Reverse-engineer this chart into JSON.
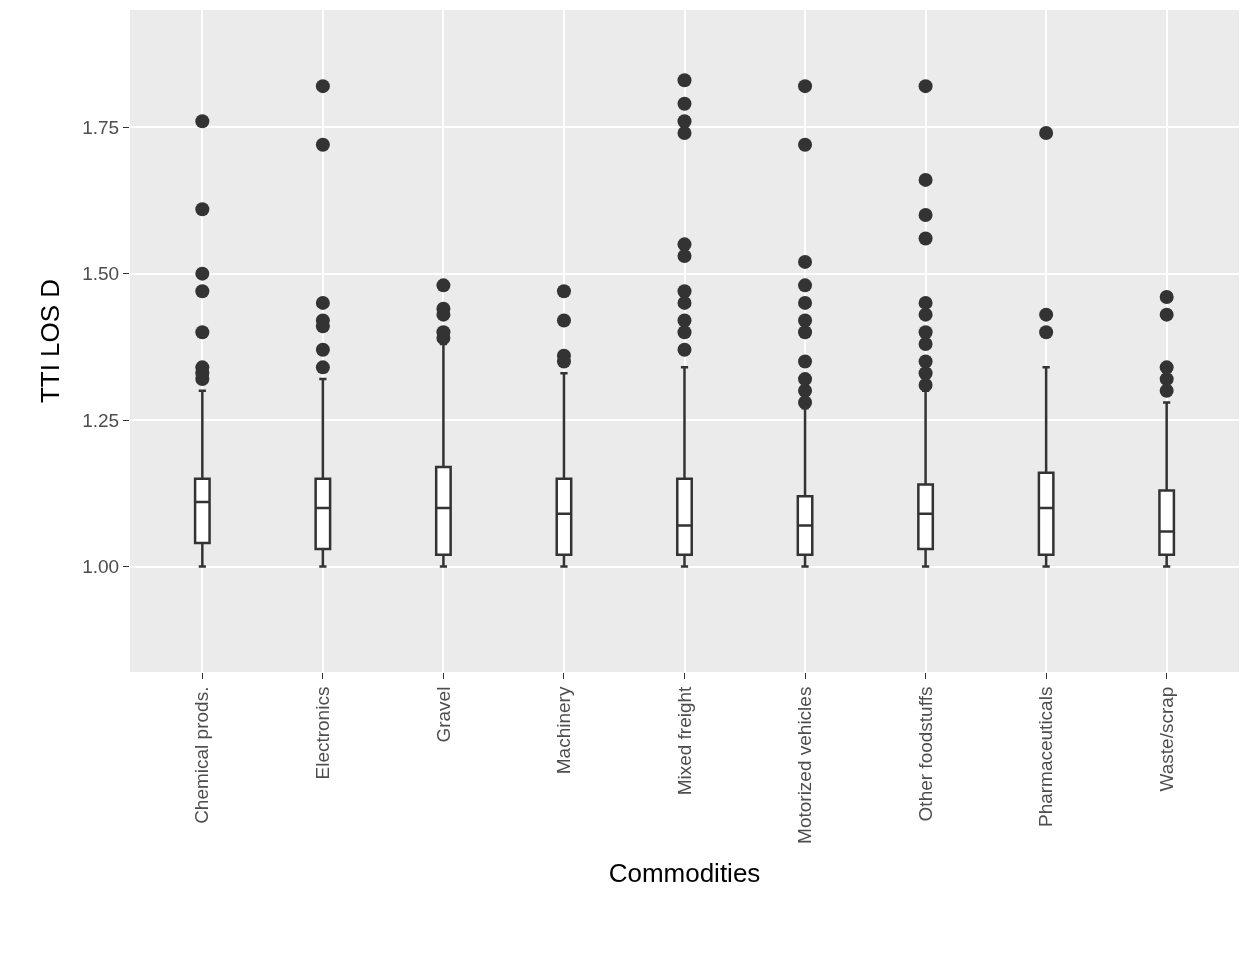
{
  "chart_data": {
    "type": "box",
    "xlabel": "Commodities",
    "ylabel": "TTI LOS D",
    "categories": [
      "Chemical prods.",
      "Electronics",
      "Gravel",
      "Machinery",
      "Mixed freight",
      "Motorized vehicles",
      "Other foodstuffs",
      "Pharmaceuticals",
      "Waste/scrap"
    ],
    "color": "#333333",
    "boxes": [
      {
        "low": 1.0,
        "q1": 1.04,
        "median": 1.11,
        "q3": 1.15,
        "high": 1.3,
        "outliers": [
          1.76,
          1.61,
          1.5,
          1.47,
          1.4,
          1.34,
          1.33,
          1.32
        ]
      },
      {
        "low": 1.0,
        "q1": 1.03,
        "median": 1.1,
        "q3": 1.15,
        "high": 1.32,
        "outliers": [
          1.82,
          1.72,
          1.45,
          1.42,
          1.41,
          1.37,
          1.34
        ]
      },
      {
        "low": 1.0,
        "q1": 1.02,
        "median": 1.1,
        "q3": 1.17,
        "high": 1.38,
        "outliers": [
          1.48,
          1.44,
          1.43,
          1.4,
          1.39
        ]
      },
      {
        "low": 1.0,
        "q1": 1.02,
        "median": 1.09,
        "q3": 1.15,
        "high": 1.33,
        "outliers": [
          1.47,
          1.42,
          1.36,
          1.35
        ]
      },
      {
        "low": 1.0,
        "q1": 1.02,
        "median": 1.07,
        "q3": 1.15,
        "high": 1.34,
        "outliers": [
          1.83,
          1.79,
          1.76,
          1.74,
          1.55,
          1.53,
          1.47,
          1.45,
          1.42,
          1.4,
          1.37
        ]
      },
      {
        "low": 1.0,
        "q1": 1.02,
        "median": 1.07,
        "q3": 1.12,
        "high": 1.27,
        "outliers": [
          1.82,
          1.72,
          1.52,
          1.48,
          1.45,
          1.42,
          1.4,
          1.35,
          1.32,
          1.3,
          1.28
        ]
      },
      {
        "low": 1.0,
        "q1": 1.03,
        "median": 1.09,
        "q3": 1.14,
        "high": 1.3,
        "outliers": [
          1.82,
          1.66,
          1.6,
          1.56,
          1.45,
          1.43,
          1.4,
          1.38,
          1.35,
          1.33,
          1.31
        ]
      },
      {
        "low": 1.0,
        "q1": 1.02,
        "median": 1.1,
        "q3": 1.16,
        "high": 1.34,
        "outliers": [
          1.74,
          1.43,
          1.4
        ]
      },
      {
        "low": 1.0,
        "q1": 1.02,
        "median": 1.06,
        "q3": 1.13,
        "high": 1.28,
        "outliers": [
          1.46,
          1.43,
          1.34,
          1.32,
          1.3
        ]
      }
    ],
    "ylim": [
      0.82,
      1.95
    ],
    "yticks": [
      {
        "value": 1.0,
        "label": "1.00"
      },
      1.25,
      {
        "value": 1.5,
        "label": "1.50"
      },
      1.75
    ],
    "grid": true,
    "marker": "circle"
  }
}
